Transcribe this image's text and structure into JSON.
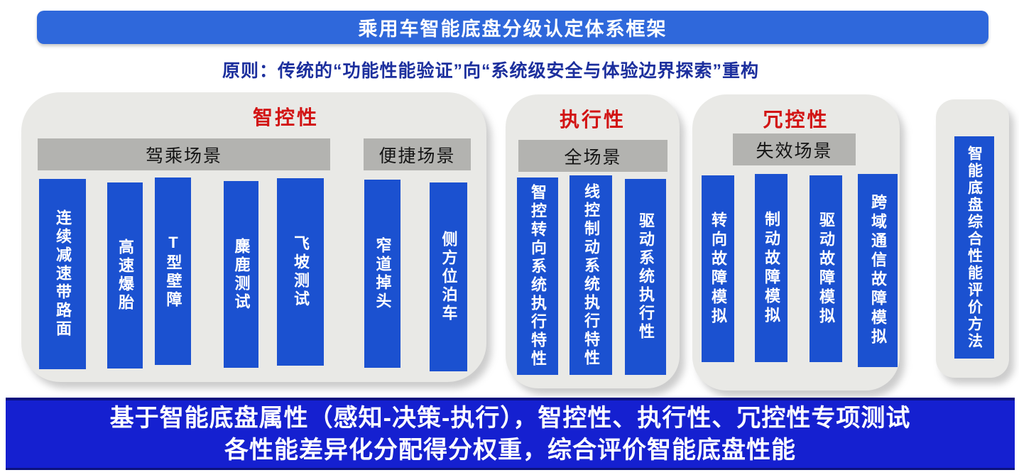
{
  "title_banner": {
    "text": "乘用车智能底盘分级认定体系框架"
  },
  "principle": {
    "text": "原则：传统的“功能性能验证”向“系统级安全与体验边界探索”重构"
  },
  "panels": [
    {
      "title": "智控性",
      "groups": [
        {
          "header": "驾乘场景",
          "bars": [
            "连续减速带路面",
            "高速爆胎",
            "T型壁障",
            "麋鹿测试",
            "飞坡测试"
          ]
        },
        {
          "header": "便捷场景",
          "bars": [
            "窄道掉头",
            "侧方位泊车"
          ]
        }
      ]
    },
    {
      "title": "执行性",
      "groups": [
        {
          "header": "全场景",
          "bars": [
            "智控转向系统执行特性",
            "线控制动系统执行特性",
            "驱动系统执行性"
          ]
        }
      ]
    },
    {
      "title": "冗控性",
      "groups": [
        {
          "header": "失效场景",
          "bars": [
            "转向故障模拟",
            "制动故障模拟",
            "驱动故障模拟",
            "跨域通信故障模拟"
          ]
        }
      ]
    },
    {
      "title": "",
      "groups": [
        {
          "header": "",
          "bars": [
            "智能底盘综合性能评价方法"
          ]
        }
      ]
    }
  ],
  "bottom_banner": {
    "line1": "基于智能底盘属性（感知-决策-执行），智控性、执行性、冗控性专项测试",
    "line2": "各性能差异化分配得分权重，综合评价智能底盘性能"
  },
  "colors": {
    "top_banner_blue": "#2f68db",
    "principle_navy": "#1c2f9d",
    "panel_gray": "#e9e9e6",
    "header_gray": "#b3b3b0",
    "bar_blue": "#1b51d0",
    "title_red": "#d21414",
    "bottom_banner_blue": "#1520d0",
    "bottom_banner_edge": "#0c127e"
  }
}
